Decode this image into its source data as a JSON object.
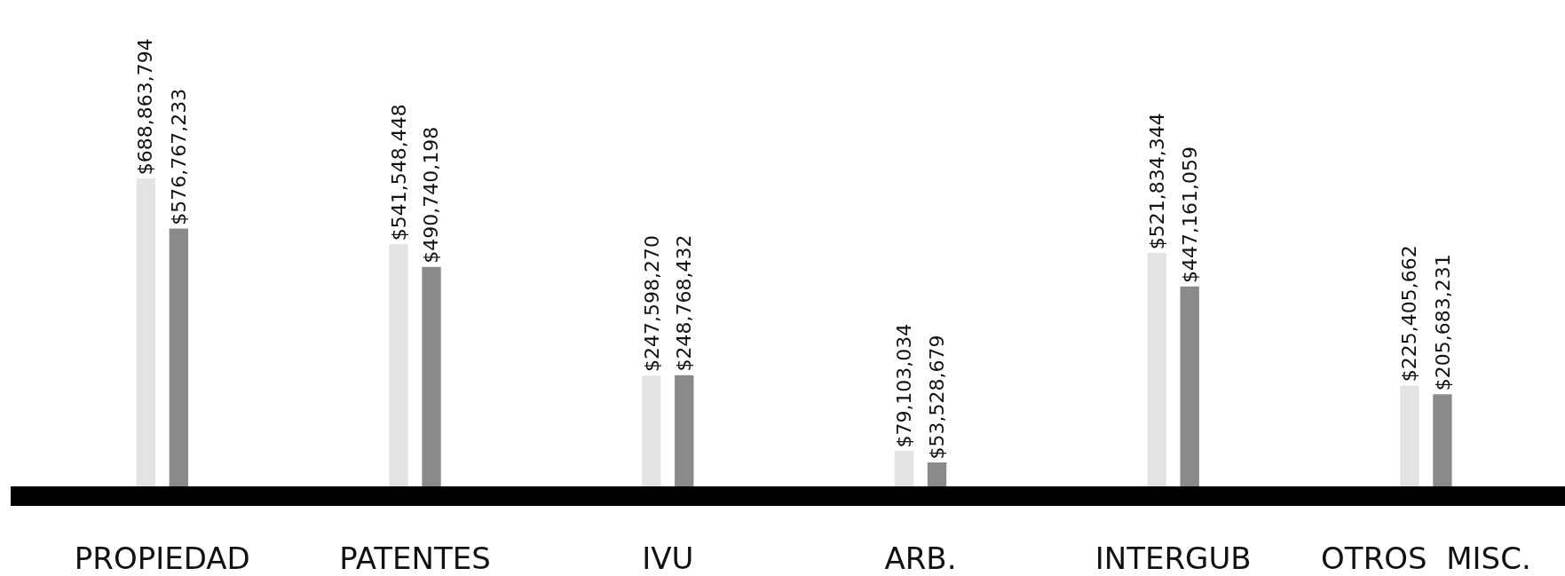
{
  "chart_data": {
    "type": "bar",
    "categories": [
      "PROPIEDAD",
      "PATENTES",
      "IVU",
      "ARB.",
      "INTERGUB",
      "OTROS  MISC."
    ],
    "series": [
      {
        "color": "#e3e3e3",
        "values": [
          688863794,
          541548448,
          247598270,
          79103034,
          521834344,
          225405662
        ],
        "value_labels": [
          "$688,863,794",
          "$541,548,448",
          "$247,598,270",
          "$79,103,034",
          "$521,834,344",
          "$225,405,662"
        ]
      },
      {
        "color": "#8a8a8a",
        "values": [
          576767233,
          490740198,
          248768432,
          53528679,
          447161059,
          205683231
        ],
        "value_labels": [
          "$576,767,233",
          "$490,740,198",
          "$248,768,432",
          "$53,528,679",
          "$447,161,059",
          "$205,683,231"
        ]
      }
    ],
    "legend": false
  }
}
